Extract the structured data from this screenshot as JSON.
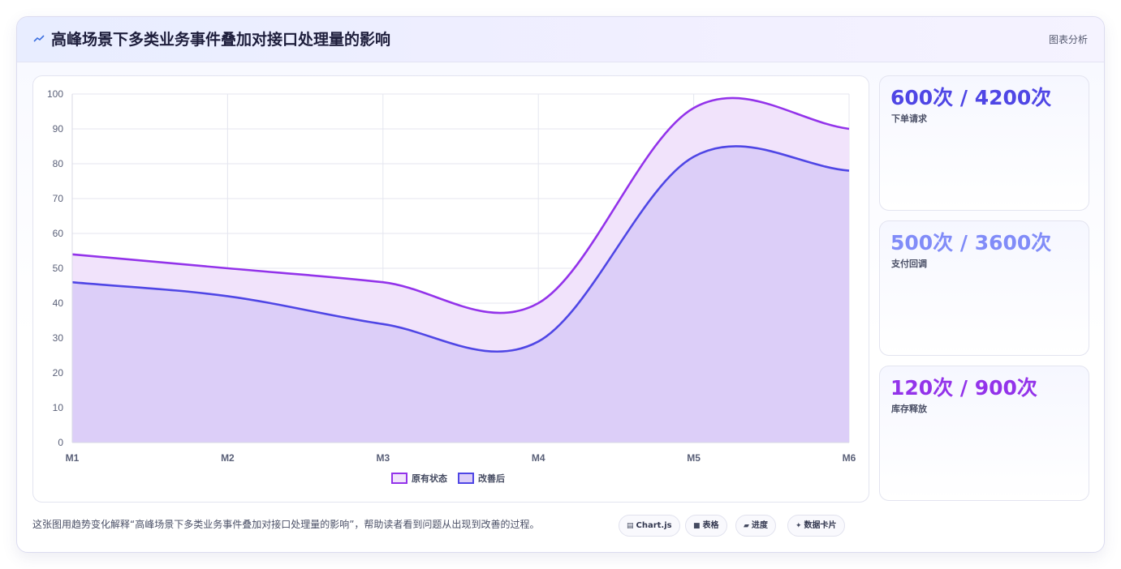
{
  "header": {
    "title": "高峰场景下多类业务事件叠加对接口处理量的影响",
    "tag": "图表分析",
    "icon": "trend-icon"
  },
  "stats": [
    {
      "value": "600次 / 4200次",
      "label": "下单请求",
      "color": "#4f46e5"
    },
    {
      "value": "500次 / 3600次",
      "label": "支付回调",
      "color": "#818cf8"
    },
    {
      "value": "120次 / 900次",
      "label": "库存释放",
      "color": "#9333ea"
    }
  ],
  "footnote": "这张图用趋势变化解释“高峰场景下多类业务事件叠加对接口处理量的影响”，帮助读者看到问题从出现到改善的过程。",
  "chips": [
    {
      "icon": "chart-icon",
      "glyph": "▤",
      "label": "Chart.js"
    },
    {
      "icon": "table-icon",
      "glyph": "■",
      "label": "表格"
    },
    {
      "icon": "progress-icon",
      "glyph": "▰",
      "label": "进度"
    },
    {
      "icon": "card-icon",
      "glyph": "✦",
      "label": "数据卡片"
    }
  ],
  "chart_data": {
    "type": "area",
    "categories": [
      "M1",
      "M2",
      "M3",
      "M4",
      "M5",
      "M6"
    ],
    "series": [
      {
        "name": "原有状态",
        "values": [
          54,
          50,
          46,
          40,
          96,
          90
        ],
        "stroke": "#9333ea",
        "fill": "#f1e3fb"
      },
      {
        "name": "改善后",
        "values": [
          46,
          42,
          34,
          29,
          82,
          78
        ],
        "stroke": "#4f46e5",
        "fill": "#dccef8"
      }
    ],
    "ylim": [
      0,
      100
    ],
    "yticks": [
      0,
      10,
      20,
      30,
      40,
      50,
      60,
      70,
      80,
      90,
      100
    ],
    "grid": true,
    "legend": "bottom"
  }
}
